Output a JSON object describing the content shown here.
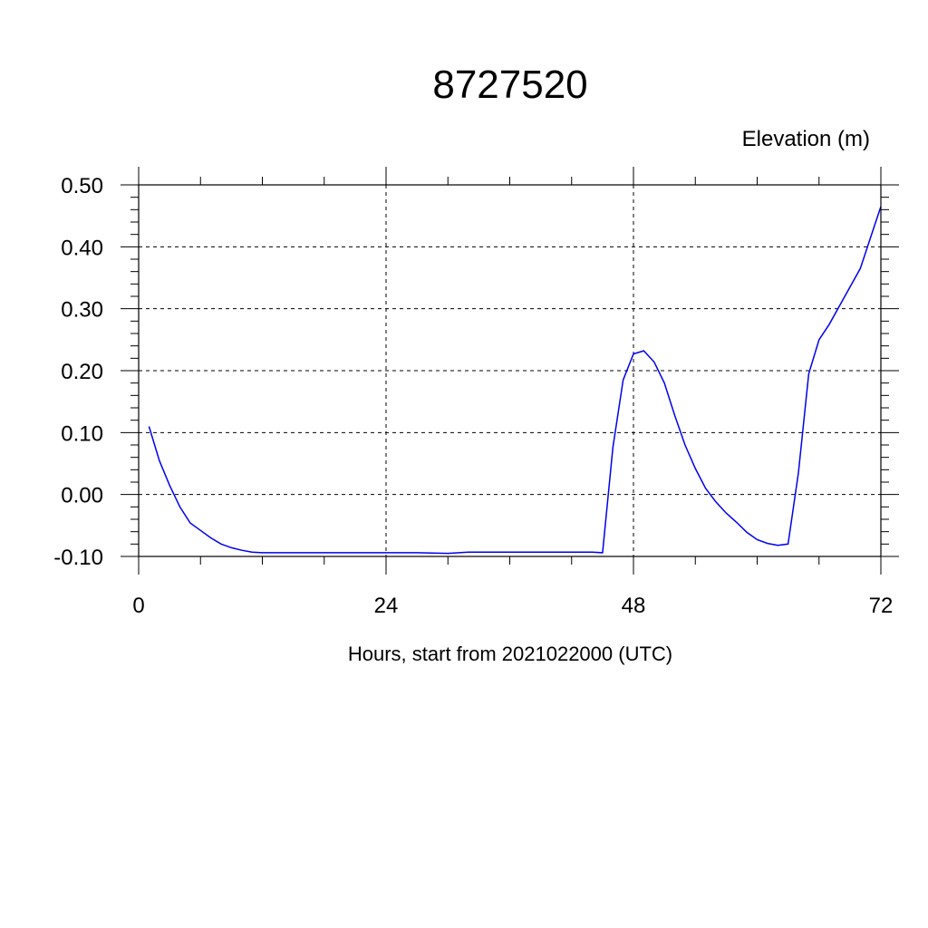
{
  "chart_data": {
    "type": "line",
    "title": "8727520",
    "ylabel": "Elevation (m)",
    "xlabel": "Hours, start from 2021022000 (UTC)",
    "xlim": [
      0,
      72
    ],
    "ylim": [
      -0.1,
      0.5
    ],
    "xticks": [
      0,
      24,
      48,
      72
    ],
    "xtick_labels": [
      "0",
      "24",
      "48",
      "72"
    ],
    "yticks": [
      -0.1,
      0.0,
      0.1,
      0.2,
      0.3,
      0.4,
      0.5
    ],
    "ytick_labels": [
      "-0.10",
      "0.00",
      "0.10",
      "0.20",
      "0.30",
      "0.40",
      "0.50"
    ],
    "grid": true,
    "series": [
      {
        "color": "#0000ee",
        "x": [
          1,
          2,
          3,
          4,
          5,
          6,
          7,
          8,
          9,
          10,
          11,
          12,
          15,
          18,
          21,
          24,
          27,
          30,
          32,
          35,
          38,
          41,
          44,
          45,
          46,
          47,
          48,
          49,
          50,
          51,
          52,
          53,
          54,
          55,
          56,
          57,
          58,
          59,
          60,
          61,
          62,
          63,
          64,
          65,
          66,
          67,
          68,
          69,
          70,
          71,
          72
        ],
        "y": [
          0.11,
          0.055,
          0.015,
          -0.02,
          -0.046,
          -0.058,
          -0.07,
          -0.08,
          -0.086,
          -0.09,
          -0.093,
          -0.094,
          -0.094,
          -0.094,
          -0.094,
          -0.094,
          -0.094,
          -0.095,
          -0.093,
          -0.093,
          -0.093,
          -0.093,
          -0.093,
          -0.094,
          0.076,
          0.185,
          0.227,
          0.232,
          0.214,
          0.18,
          0.128,
          0.08,
          0.042,
          0.01,
          -0.012,
          -0.03,
          -0.045,
          -0.061,
          -0.073,
          -0.079,
          -0.082,
          -0.08,
          0.035,
          0.195,
          0.25,
          0.275,
          0.305,
          0.335,
          0.365,
          0.415,
          0.465
        ]
      }
    ]
  }
}
